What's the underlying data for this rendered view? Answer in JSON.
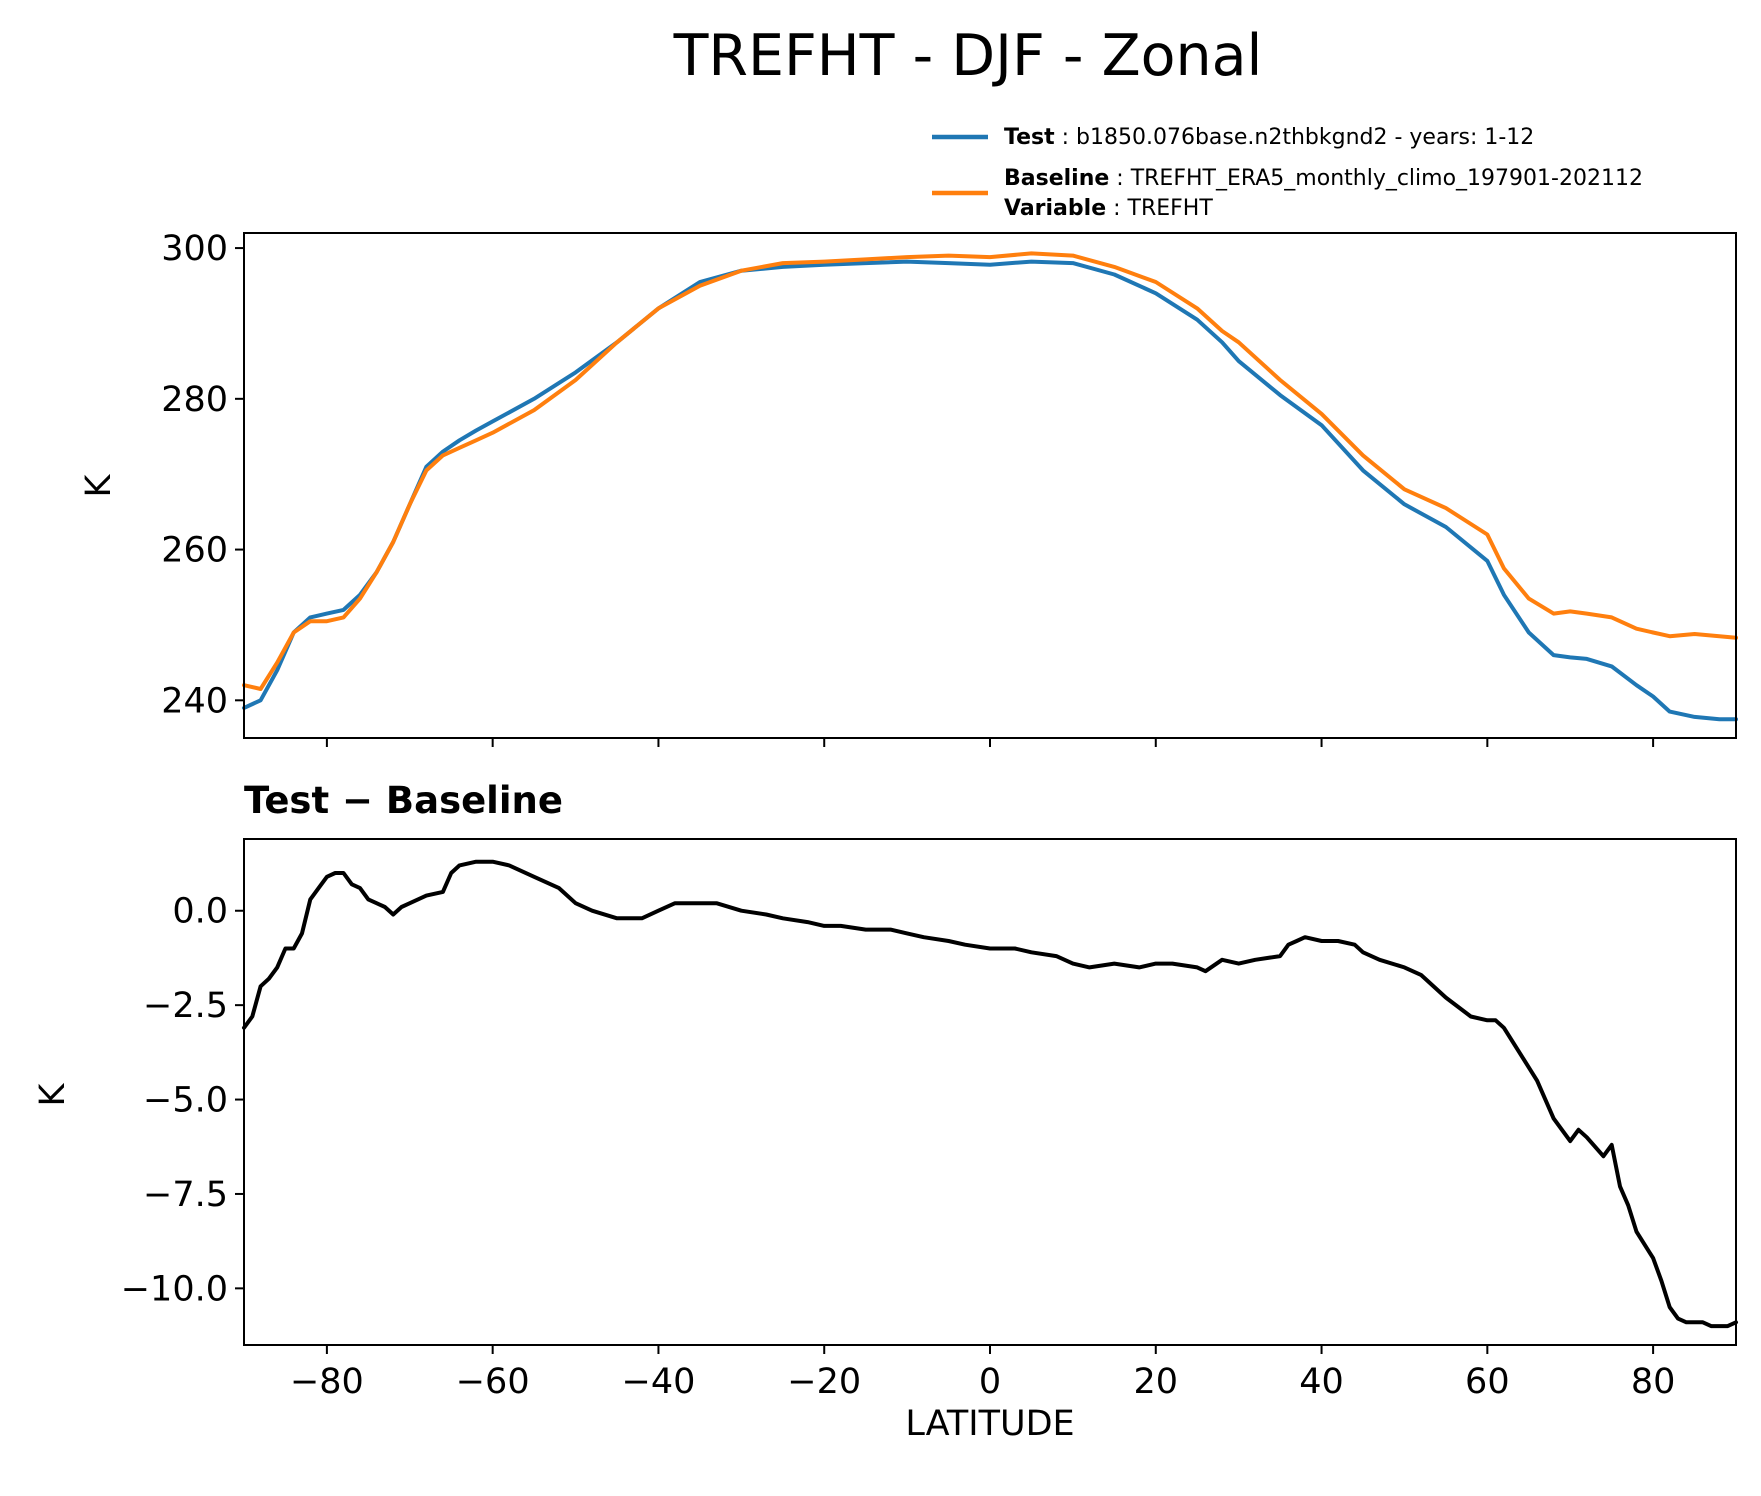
{
  "chart_data": [
    {
      "type": "line",
      "title": "TREFHT - DJF - Zonal",
      "ylabel": "K",
      "xlim": [
        -90,
        90
      ],
      "ylim": [
        235,
        302
      ],
      "xticks": [
        -80,
        -60,
        -40,
        -20,
        0,
        20,
        40,
        60,
        80
      ],
      "yticks": [
        240,
        260,
        280,
        300
      ],
      "ytick_labels": [
        "240",
        "260",
        "280",
        "300"
      ],
      "legend": {
        "placement": "top-right, above axes",
        "entries": [
          {
            "key": "Test",
            "text": "b1850.076base.n2thbkgnd2 - years: 1-12",
            "color": "#1f77b4"
          },
          {
            "key": "Baseline",
            "text": "TREFHT_ERA5_monthly_climo_197901-202112",
            "color": "#ff7f0e"
          },
          {
            "key": "Variable",
            "text": "TREFHT"
          }
        ]
      },
      "series": [
        {
          "name": "Test",
          "color": "#1f77b4",
          "x": [
            -90,
            -88,
            -86,
            -84,
            -82,
            -80,
            -78,
            -76,
            -74,
            -72,
            -70,
            -68,
            -66,
            -64,
            -62,
            -60,
            -55,
            -50,
            -45,
            -40,
            -35,
            -30,
            -25,
            -20,
            -15,
            -10,
            -5,
            0,
            5,
            10,
            15,
            20,
            25,
            28,
            30,
            35,
            40,
            45,
            50,
            55,
            60,
            62,
            65,
            68,
            70,
            72,
            75,
            78,
            80,
            82,
            85,
            88,
            90
          ],
          "y": [
            239,
            240,
            244,
            249,
            251,
            251.5,
            252,
            254,
            257,
            261,
            266,
            271,
            273,
            274.5,
            275.8,
            277,
            280,
            283.5,
            287.5,
            292,
            295.5,
            297,
            297.5,
            297.8,
            298,
            298.2,
            298,
            297.8,
            298.2,
            298,
            296.5,
            294,
            290.5,
            287.5,
            285,
            280.5,
            276.5,
            270.5,
            266,
            263,
            258.5,
            254,
            249,
            246,
            245.7,
            245.5,
            244.5,
            242,
            240.5,
            238.5,
            237.8,
            237.5,
            237.5
          ]
        },
        {
          "name": "Baseline",
          "color": "#ff7f0e",
          "x": [
            -90,
            -88,
            -86,
            -84,
            -82,
            -80,
            -78,
            -76,
            -74,
            -72,
            -70,
            -68,
            -66,
            -64,
            -62,
            -60,
            -55,
            -50,
            -45,
            -40,
            -35,
            -30,
            -25,
            -20,
            -15,
            -10,
            -5,
            0,
            5,
            10,
            15,
            20,
            25,
            28,
            30,
            35,
            40,
            45,
            50,
            55,
            60,
            62,
            65,
            68,
            70,
            72,
            75,
            78,
            80,
            82,
            85,
            88,
            90
          ],
          "y": [
            242,
            241.5,
            245,
            249,
            250.5,
            250.5,
            251,
            253.5,
            257,
            261,
            266,
            270.5,
            272.5,
            273.5,
            274.5,
            275.5,
            278.5,
            282.5,
            287.5,
            292,
            295,
            297,
            298,
            298.2,
            298.5,
            298.8,
            299,
            298.8,
            299.3,
            299,
            297.5,
            295.5,
            292,
            289,
            287.5,
            282.5,
            278,
            272.5,
            268,
            265.5,
            262,
            257.5,
            253.5,
            251.5,
            251.8,
            251.5,
            251,
            249.5,
            249,
            248.5,
            248.8,
            248.5,
            248.3
          ]
        }
      ]
    },
    {
      "type": "line",
      "title": "Test − Baseline",
      "xlabel": "LATITUDE",
      "ylabel": "K",
      "xlim": [
        -90,
        90
      ],
      "ylim": [
        -11.5,
        1.9
      ],
      "xticks": [
        -80,
        -60,
        -40,
        -20,
        0,
        20,
        40,
        60,
        80
      ],
      "xtick_labels": [
        "−80",
        "−60",
        "−40",
        "−20",
        "0",
        "20",
        "40",
        "60",
        "80"
      ],
      "yticks": [
        -10.0,
        -7.5,
        -5.0,
        -2.5,
        0.0
      ],
      "ytick_labels": [
        "−10.0",
        "−7.5",
        "−5.0",
        "−2.5",
        "0.0"
      ],
      "series": [
        {
          "color": "#000000",
          "x": [
            -90,
            -89,
            -88,
            -87,
            -86,
            -85,
            -84,
            -83,
            -82,
            -81,
            -80,
            -79,
            -78,
            -77,
            -76,
            -75,
            -74,
            -73,
            -72,
            -71,
            -70,
            -68,
            -66,
            -65,
            -64,
            -62,
            -60,
            -58,
            -55,
            -52,
            -50,
            -48,
            -45,
            -42,
            -40,
            -38,
            -35,
            -33,
            -30,
            -27,
            -25,
            -22,
            -20,
            -18,
            -15,
            -12,
            -10,
            -8,
            -5,
            -3,
            0,
            3,
            5,
            8,
            10,
            12,
            15,
            18,
            20,
            22,
            25,
            26,
            28,
            30,
            32,
            35,
            36,
            37,
            38,
            40,
            42,
            44,
            45,
            47,
            50,
            52,
            55,
            58,
            60,
            61,
            62,
            64,
            66,
            68,
            70,
            71,
            72,
            74,
            75,
            76,
            77,
            78,
            80,
            81,
            82,
            83,
            84,
            85,
            86,
            87,
            88,
            89,
            90
          ],
          "y": [
            -3.1,
            -2.8,
            -2.0,
            -1.8,
            -1.5,
            -1.0,
            -1.0,
            -0.6,
            0.3,
            0.6,
            0.9,
            1.0,
            1.0,
            0.7,
            0.6,
            0.3,
            0.2,
            0.1,
            -0.1,
            0.1,
            0.2,
            0.4,
            0.5,
            1.0,
            1.2,
            1.3,
            1.3,
            1.2,
            0.9,
            0.6,
            0.2,
            0.0,
            -0.2,
            -0.2,
            0.0,
            0.2,
            0.2,
            0.2,
            0.0,
            -0.1,
            -0.2,
            -0.3,
            -0.4,
            -0.4,
            -0.5,
            -0.5,
            -0.6,
            -0.7,
            -0.8,
            -0.9,
            -1.0,
            -1.0,
            -1.1,
            -1.2,
            -1.4,
            -1.5,
            -1.4,
            -1.5,
            -1.4,
            -1.4,
            -1.5,
            -1.6,
            -1.3,
            -1.4,
            -1.3,
            -1.2,
            -0.9,
            -0.8,
            -0.7,
            -0.8,
            -0.8,
            -0.9,
            -1.1,
            -1.3,
            -1.5,
            -1.7,
            -2.3,
            -2.8,
            -2.9,
            -2.9,
            -3.1,
            -3.8,
            -4.5,
            -5.5,
            -6.1,
            -5.8,
            -6.0,
            -6.5,
            -6.2,
            -7.3,
            -7.8,
            -8.5,
            -9.2,
            -9.8,
            -10.5,
            -10.8,
            -10.9,
            -10.9,
            -10.9,
            -11.0,
            -11.0,
            -11.0,
            -10.9
          ]
        }
      ]
    }
  ]
}
